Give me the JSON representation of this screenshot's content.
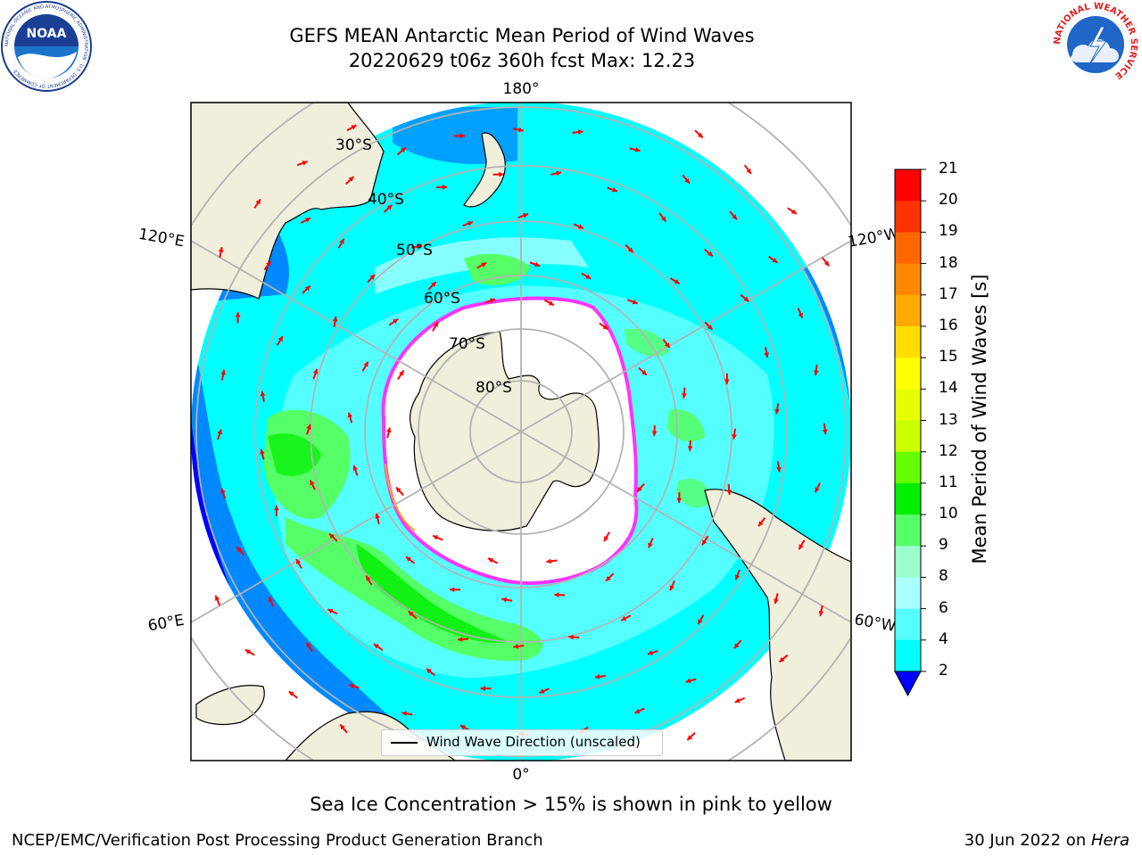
{
  "header": {
    "title_line1": "GEFS MEAN Antarctic Mean Period of Wind Waves",
    "title_line2": "20220629 t06z 360h fcst   Max: 12.23"
  },
  "logos": {
    "left": {
      "name": "noaa-logo",
      "text": "NOAA",
      "ring_text": "NATIONAL OCEANIC AND ATMOSPHERIC ADMINISTRATION · U.S. DEPARTMENT OF COMMERCE"
    },
    "right": {
      "name": "nws-logo",
      "ring_text": "NATIONAL WEATHER SERVICE"
    }
  },
  "map": {
    "projection": "south-polar-stereographic",
    "longitude_labels": [
      "180°",
      "120°E",
      "120°W",
      "60°E",
      "60°W",
      "0°"
    ],
    "latitude_labels": [
      "30°S",
      "40°S",
      "50°S",
      "60°S",
      "70°S",
      "80°S"
    ],
    "legend_label": "Wind Wave Direction (unscaled)",
    "colors": {
      "land": "#efefdc",
      "ice": "#ffffff",
      "ice_edge": "#ff33ff",
      "vector": "#ff0000",
      "grid": "#b3b3b3"
    }
  },
  "colorbar": {
    "title": "Mean Period of Wind Waves [s]",
    "ticks": [
      "21",
      "20",
      "19",
      "18",
      "17",
      "16",
      "15",
      "14",
      "13",
      "12",
      "11",
      "10",
      "9",
      "8",
      "6",
      "4",
      "2"
    ],
    "colors": [
      "#ff0000",
      "#ff3300",
      "#ff6600",
      "#ff8800",
      "#ffaa00",
      "#ffdd00",
      "#ffff00",
      "#e6ff00",
      "#ccff00",
      "#66ff00",
      "#00ee00",
      "#55ff66",
      "#99ffcc",
      "#aaffff",
      "#55ffff",
      "#00ffff",
      "#0088ff"
    ],
    "extend_color": "#0000ff"
  },
  "footer": {
    "ice_note": "Sea Ice Concentration > 15% is shown in pink to yellow",
    "left": "NCEP/EMC/Verification Post Processing Product Generation Branch",
    "right_date": "30 Jun 2022 on ",
    "right_host": "Hera"
  }
}
